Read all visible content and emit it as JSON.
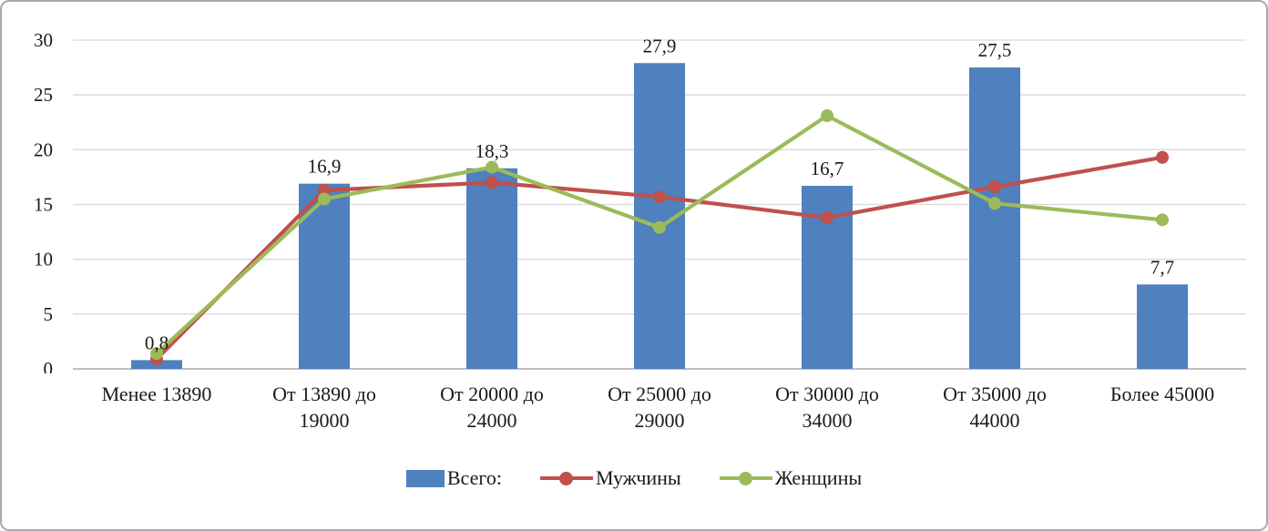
{
  "chart_data": {
    "type": "bar",
    "subtype": "combo-bar-line",
    "title": "",
    "categories": [
      "Менее 13890",
      "От 13890 до 19000",
      "От 20000 до 24000",
      "От 25000 до 29000",
      "От 30000 до 34000",
      "От 35000 до 44000",
      "Более 45000"
    ],
    "bar_series": {
      "name": "Всего:",
      "color": "#4e81bd",
      "values": [
        0.8,
        16.9,
        18.3,
        27.9,
        16.7,
        27.5,
        7.7
      ],
      "labels": [
        "0,8",
        "16,9",
        "18,3",
        "27,9",
        "16,7",
        "27,5",
        "7,7"
      ]
    },
    "line_series": [
      {
        "name": "Мужчины",
        "color": "#c0504d",
        "values": [
          0.9,
          16.3,
          17.0,
          15.7,
          13.8,
          16.6,
          19.3
        ]
      },
      {
        "name": "Женщины",
        "color": "#9bbb59",
        "values": [
          1.4,
          15.5,
          18.4,
          12.9,
          23.1,
          15.1,
          13.6
        ]
      }
    ],
    "ylim": [
      0,
      30
    ],
    "yticks": [
      0,
      5,
      10,
      15,
      20,
      25,
      30
    ],
    "grid": true,
    "legend_position": "bottom",
    "axis_color": "#9b9b9b",
    "gridline_color": "#d9d9d9"
  }
}
